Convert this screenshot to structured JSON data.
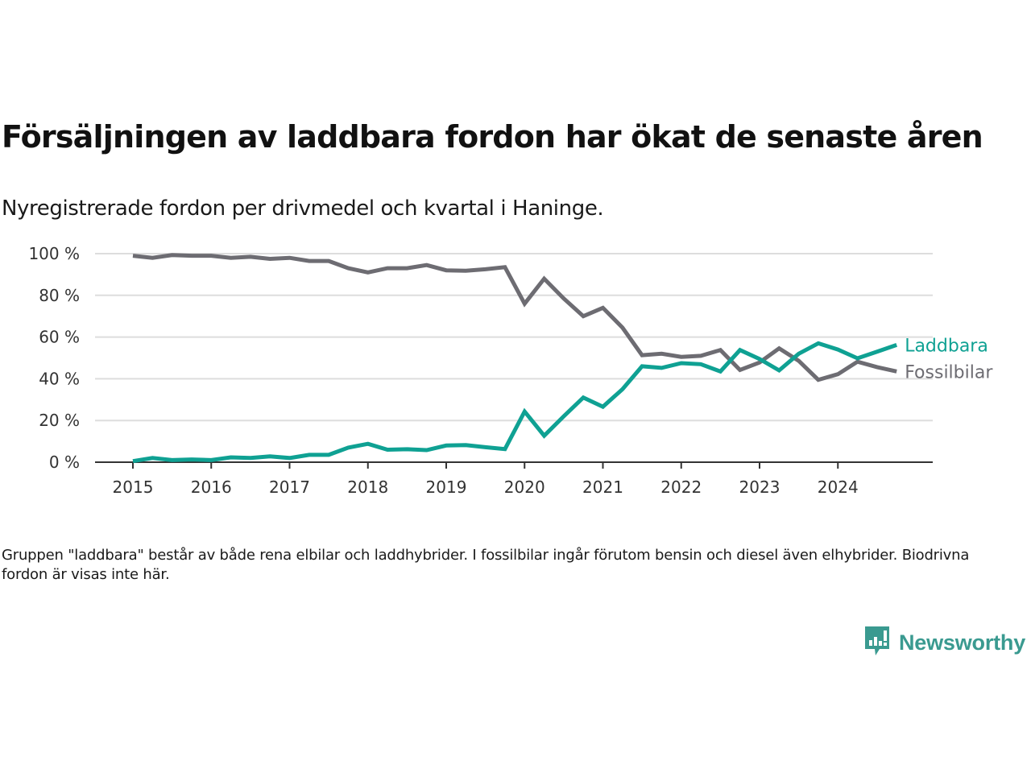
{
  "header": {
    "title": "Försäljningen av laddbara fordon har ökat de senaste åren",
    "subtitle": "Nyregistrerade fordon per drivmedel och kvartal i Haninge."
  },
  "footer": {
    "note": "Gruppen \"laddbara\" består av både rena elbilar och laddhybrider. I fossilbilar ingår förutom bensin och diesel även elhybrider. Biodrivna fordon är visas inte här.",
    "brand": "Newsworthy",
    "brand_icon": "newsworthy-logo-icon",
    "brand_color": "#3a9a90"
  },
  "chart_data": {
    "type": "line",
    "title": "Försäljningen av laddbara fordon har ökat de senaste åren",
    "subtitle": "Nyregistrerade fordon per drivmedel och kvartal i Haninge.",
    "xlabel": "",
    "ylabel": "",
    "x_start": 2015,
    "x_step": 0.25,
    "xlim": [
      2014.52,
      2025.2
    ],
    "ylim": [
      0,
      100
    ],
    "yticks": [
      0,
      20,
      40,
      60,
      80,
      100
    ],
    "ytick_labels": [
      "0 %",
      "20 %",
      "40 %",
      "60 %",
      "80 %",
      "100 %"
    ],
    "xticks": [
      2015,
      2016,
      2017,
      2018,
      2019,
      2020,
      2021,
      2022,
      2023,
      2024
    ],
    "xtick_labels": [
      "2015",
      "2016",
      "2017",
      "2018",
      "2019",
      "2020",
      "2021",
      "2022",
      "2023",
      "2024"
    ],
    "grid": true,
    "legend": "end-of-line labels right",
    "series": [
      {
        "name": "Laddbara",
        "color": "#0fa193",
        "values": [
          0.5,
          2.0,
          1.0,
          1.3,
          1.0,
          2.3,
          2.0,
          2.8,
          2.0,
          3.5,
          3.5,
          7.0,
          8.8,
          6.0,
          6.2,
          5.8,
          8.0,
          8.2,
          7.2,
          6.3,
          24.3,
          12.7,
          22.0,
          31.0,
          26.6,
          35.0,
          46.0,
          45.2,
          47.5,
          47.0,
          43.5,
          53.8,
          49.5,
          44.0,
          52.0,
          57.0,
          54.0,
          49.8,
          53.0,
          56.2
        ]
      },
      {
        "name": "Fossilbilar",
        "color": "#6d6c72",
        "values": [
          99.0,
          98.0,
          99.3,
          99.0,
          99.0,
          98.0,
          98.5,
          97.5,
          98.0,
          96.5,
          96.5,
          93.0,
          91.0,
          93.0,
          93.0,
          94.5,
          92.0,
          91.8,
          92.5,
          93.5,
          76.0,
          88.0,
          78.5,
          70.0,
          74.0,
          64.5,
          51.3,
          52.0,
          50.5,
          51.0,
          53.8,
          44.2,
          47.8,
          54.6,
          48.6,
          39.5,
          42.2,
          48.2,
          45.6,
          43.5
        ]
      }
    ]
  }
}
